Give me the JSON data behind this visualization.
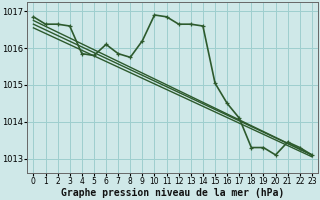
{
  "background_color": "#cfe8e8",
  "grid_color": "#9ecece",
  "line_color": "#2d5a2d",
  "xlabel": "Graphe pression niveau de la mer (hPa)",
  "xlabel_fontsize": 7,
  "ylim": [
    1012.6,
    1017.25
  ],
  "xlim": [
    -0.5,
    23.5
  ],
  "yticks": [
    1013,
    1014,
    1015,
    1016,
    1017
  ],
  "xticks": [
    0,
    1,
    2,
    3,
    4,
    5,
    6,
    7,
    8,
    9,
    10,
    11,
    12,
    13,
    14,
    15,
    16,
    17,
    18,
    19,
    20,
    21,
    22,
    23
  ],
  "series": [
    {
      "x": [
        0,
        1,
        2,
        3,
        4,
        5,
        6,
        7,
        8,
        9,
        10,
        11,
        12,
        13,
        14,
        15,
        16,
        17,
        18,
        19,
        20,
        21,
        22,
        23
      ],
      "y": [
        1016.85,
        1016.65,
        1016.65,
        1016.6,
        1015.85,
        1015.8,
        1016.1,
        1015.85,
        1015.75,
        1016.2,
        1016.9,
        1016.85,
        1016.65,
        1016.65,
        1016.6,
        1015.05,
        1014.5,
        1014.1,
        1013.3,
        1013.3,
        1013.1,
        1013.45,
        1013.3,
        1013.1
      ],
      "linestyle": "-",
      "linewidth": 1.2,
      "has_markers": true,
      "markersize": 3.5
    },
    {
      "x": [
        0,
        23
      ],
      "y": [
        1016.75,
        1013.1
      ],
      "linestyle": "-",
      "linewidth": 1.0,
      "has_markers": false,
      "markersize": 0
    },
    {
      "x": [
        0,
        23
      ],
      "y": [
        1016.65,
        1013.1
      ],
      "linestyle": "-",
      "linewidth": 1.0,
      "has_markers": false,
      "markersize": 0
    },
    {
      "x": [
        0,
        23
      ],
      "y": [
        1016.55,
        1013.05
      ],
      "linestyle": "-",
      "linewidth": 1.0,
      "has_markers": false,
      "markersize": 0
    }
  ]
}
